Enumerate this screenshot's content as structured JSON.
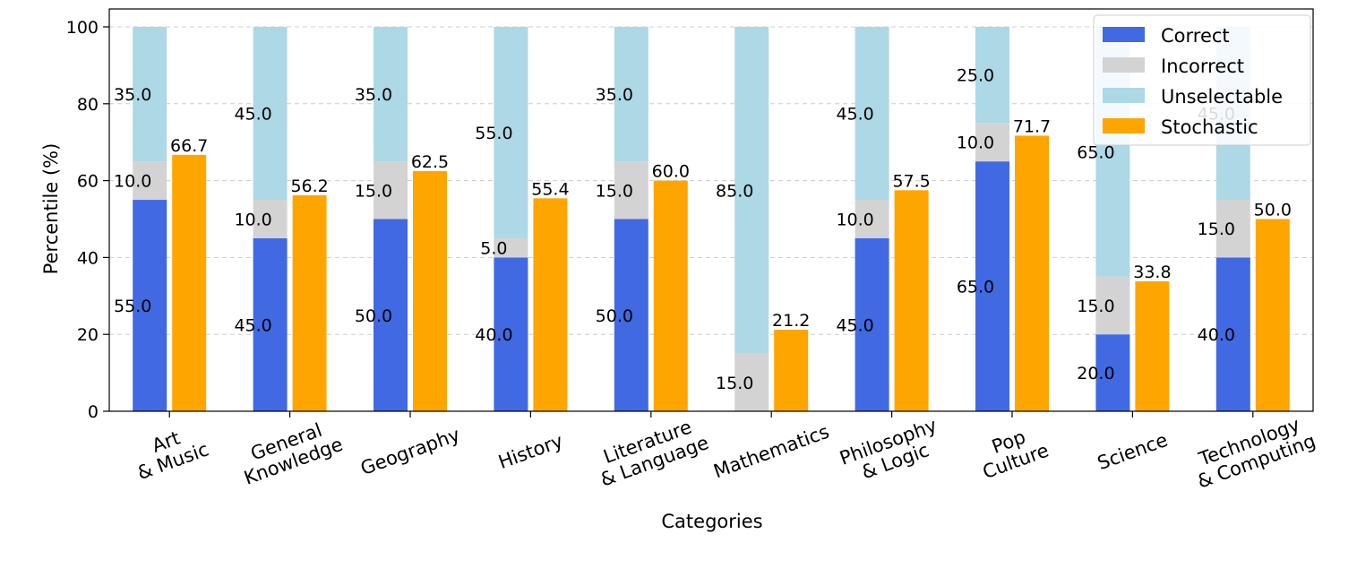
{
  "chart_data": {
    "type": "bar",
    "title": "",
    "xlabel": "Categories",
    "ylabel": "Percentile (%)",
    "ylim": [
      0,
      100
    ],
    "yticks": [
      "0",
      "20",
      "40",
      "60",
      "80",
      "100"
    ],
    "grid": "y-dashed",
    "legend_position": "top-right",
    "categories": [
      [
        "Art",
        "& Music"
      ],
      [
        "General",
        "Knowledge"
      ],
      [
        "Geography"
      ],
      [
        "History"
      ],
      [
        "Literature",
        "& Language"
      ],
      [
        "Mathematics"
      ],
      [
        "Philosophy",
        "& Logic"
      ],
      [
        "Pop",
        "Culture"
      ],
      [
        "Science"
      ],
      [
        "Technology",
        "& Computing"
      ]
    ],
    "stacked_series": [
      {
        "name": "Correct",
        "color": "#4169e1",
        "values": [
          55,
          45,
          50,
          40,
          50,
          0,
          45,
          65,
          20,
          40
        ],
        "labels": [
          "55.0",
          "45.0",
          "50.0",
          "40.0",
          "50.0",
          "",
          "45.0",
          "65.0",
          "20.0",
          "40.0"
        ]
      },
      {
        "name": "Incorrect",
        "color": "#d3d3d3",
        "values": [
          10,
          10,
          15,
          5,
          15,
          15,
          10,
          10,
          15,
          15
        ],
        "labels": [
          "10.0",
          "10.0",
          "15.0",
          "5.0",
          "15.0",
          "15.0",
          "10.0",
          "10.0",
          "15.0",
          "15.0"
        ]
      },
      {
        "name": "Unselectable",
        "color": "#add8e6",
        "values": [
          35,
          45,
          35,
          55,
          35,
          85,
          45,
          25,
          65,
          45
        ],
        "labels": [
          "35.0",
          "45.0",
          "35.0",
          "55.0",
          "35.0",
          "85.0",
          "45.0",
          "25.0",
          "65.0",
          "45.0"
        ]
      }
    ],
    "side_series": {
      "name": "Stochastic",
      "color": "#ffa500",
      "values": [
        66.7,
        56.2,
        62.5,
        55.4,
        60.0,
        21.2,
        57.5,
        71.7,
        33.8,
        50.0
      ],
      "labels": [
        "66.7",
        "56.2",
        "62.5",
        "55.4",
        "60.0",
        "21.2",
        "57.5",
        "71.7",
        "33.8",
        "50.0"
      ]
    },
    "legend": [
      "Correct",
      "Incorrect",
      "Unselectable",
      "Stochastic"
    ]
  }
}
